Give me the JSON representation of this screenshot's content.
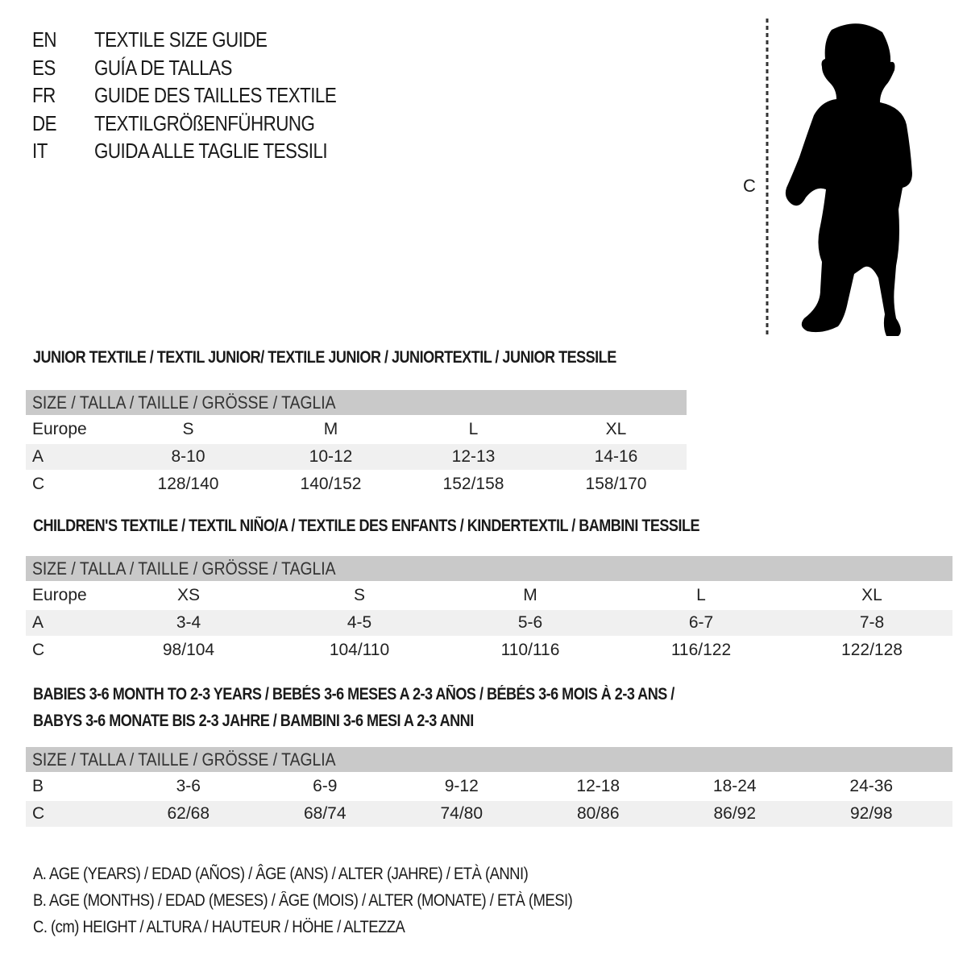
{
  "titles": [
    {
      "code": "EN",
      "text": "TEXTILE SIZE GUIDE"
    },
    {
      "code": "ES",
      "text": "GUÍA DE TALLAS"
    },
    {
      "code": "FR",
      "text": "GUIDE DES TAILLES TEXTILE"
    },
    {
      "code": "DE",
      "text": "TEXTILGRÖßENFÜHRUNG"
    },
    {
      "code": "IT",
      "text": "GUIDA ALLE TAGLIE TESSILI"
    }
  ],
  "figure": {
    "measure_label": "C",
    "icon": "child-silhouette"
  },
  "colors": {
    "header_bg": "#c9c9c9",
    "shade_bg": "#f0f0f0"
  },
  "junior": {
    "heading": "JUNIOR TEXTILE / TEXTIL JUNIOR/ TEXTILE JUNIOR / JUNIORTEXTIL / JUNIOR TESSILE",
    "header": "SIZE / TALLA / TAILLE / GRÖSSE / TAGLIA",
    "rows": [
      {
        "label": "Europe",
        "values": [
          "S",
          "M",
          "L",
          "XL"
        ]
      },
      {
        "label": "A",
        "values": [
          "8-10",
          "10-12",
          "12-13",
          "14-16"
        ]
      },
      {
        "label": "C",
        "values": [
          "128/140",
          "140/152",
          "152/158",
          "158/170"
        ]
      }
    ]
  },
  "children": {
    "heading": "CHILDREN'S TEXTILE / TEXTIL NIÑO/A / TEXTILE DES ENFANTS / KINDERTEXTIL / BAMBINI TESSILE",
    "header": "SIZE / TALLA / TAILLE / GRÖSSE / TAGLIA",
    "rows": [
      {
        "label": "Europe",
        "values": [
          "XS",
          "S",
          "M",
          "L",
          "XL"
        ]
      },
      {
        "label": "A",
        "values": [
          "3-4",
          "4-5",
          "5-6",
          "6-7",
          "7-8"
        ]
      },
      {
        "label": "C",
        "values": [
          "98/104",
          "104/110",
          "110/116",
          "116/122",
          "122/128"
        ]
      }
    ]
  },
  "babies": {
    "heading_1": "BABIES 3-6 MONTH TO 2-3 YEARS / BEBÉS 3-6 MESES A 2-3 AÑOS / BÉBÉS 3-6 MOIS À 2-3 ANS /",
    "heading_2": "BABYS 3-6 MONATE BIS 2-3 JAHRE / BAMBINI 3-6 MESI A 2-3 ANNI",
    "header": "SIZE / TALLA / TAILLE / GRÖSSE / TAGLIA",
    "rows": [
      {
        "label": "B",
        "values": [
          "3-6",
          "6-9",
          "9-12",
          "12-18",
          "18-24",
          "24-36"
        ]
      },
      {
        "label": "C",
        "values": [
          "62/68",
          "68/74",
          "74/80",
          "80/86",
          "86/92",
          "92/98"
        ]
      }
    ]
  },
  "legend": [
    "A. AGE (YEARS) / EDAD (AÑOS) / ÂGE (ANS) / ALTER (JAHRE) / ETÀ (ANNI)",
    "B. AGE (MONTHS) / EDAD (MESES) / ÂGE (MOIS) / ALTER (MONATE) / ETÀ (MESI)",
    "C. (cm) HEIGHT / ALTURA / HAUTEUR / HÖHE / ALTEZZA"
  ]
}
